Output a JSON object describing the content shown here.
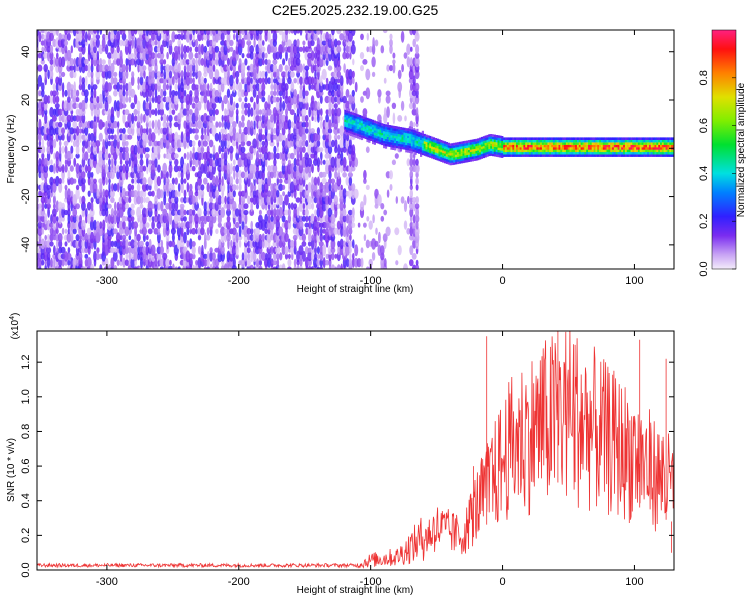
{
  "title": "C2E5.2025.232.19.00.G25",
  "chart_data": [
    {
      "type": "heatmap",
      "panel": "top",
      "xlabel": "Height of straight line (km)",
      "ylabel": "Frequency (Hz)",
      "xlim": [
        -353,
        130
      ],
      "ylim": [
        -50,
        49
      ],
      "xticks": [
        -300,
        -200,
        -100,
        0,
        100
      ],
      "yticks": [
        -40,
        -20,
        0,
        20,
        40
      ],
      "colorbar_label": "Normalized spectral amplitude",
      "colorbar_range": [
        0,
        1
      ],
      "colorbar_ticks": [
        "0.0",
        "0.2",
        "0.4",
        "0.6",
        "0.8"
      ],
      "noise_region_x": [
        -353,
        -112
      ],
      "scattered_region_x": [
        -112,
        -66
      ],
      "ridge_frequency_trend": [
        {
          "x": -120,
          "y": 12
        },
        {
          "x": -110,
          "y": 10
        },
        {
          "x": -100,
          "y": 8
        },
        {
          "x": -90,
          "y": 6
        },
        {
          "x": -80,
          "y": 5
        },
        {
          "x": -70,
          "y": 4
        },
        {
          "x": -60,
          "y": 2
        },
        {
          "x": -50,
          "y": 0
        },
        {
          "x": -40,
          "y": -2
        },
        {
          "x": -30,
          "y": -1
        },
        {
          "x": -20,
          "y": 0
        },
        {
          "x": -10,
          "y": 2
        },
        {
          "x": 0,
          "y": 1
        },
        {
          "x": 20,
          "y": 1
        },
        {
          "x": 40,
          "y": 1
        },
        {
          "x": 60,
          "y": 1
        },
        {
          "x": 80,
          "y": 1
        },
        {
          "x": 100,
          "y": 1
        },
        {
          "x": 130,
          "y": 1
        }
      ]
    },
    {
      "type": "line",
      "panel": "bottom",
      "xlabel": "Height of straight line (km)",
      "ylabel": "SNR (10 * v/v)",
      "y_multiplier": "(x10",
      "y_multiplier_exp": "4",
      "y_multiplier_close": ")",
      "xlim": [
        -353,
        130
      ],
      "ylim": [
        0,
        1.38
      ],
      "xticks": [
        -300,
        -200,
        -100,
        0,
        100
      ],
      "yticks": [
        "0.0",
        "0.2",
        "0.4",
        "0.6",
        "0.8",
        "1.0",
        "1.2"
      ],
      "color": "#ee3333",
      "envelope": [
        {
          "x": -353,
          "y": 0.03
        },
        {
          "x": -110,
          "y": 0.03
        },
        {
          "x": -100,
          "y": 0.06
        },
        {
          "x": -80,
          "y": 0.08
        },
        {
          "x": -60,
          "y": 0.2
        },
        {
          "x": -50,
          "y": 0.28
        },
        {
          "x": -40,
          "y": 0.25
        },
        {
          "x": -30,
          "y": 0.22
        },
        {
          "x": -20,
          "y": 0.42
        },
        {
          "x": -10,
          "y": 0.55
        },
        {
          "x": 0,
          "y": 0.72
        },
        {
          "x": 10,
          "y": 0.85
        },
        {
          "x": 20,
          "y": 0.9
        },
        {
          "x": 30,
          "y": 0.95
        },
        {
          "x": 40,
          "y": 1.0
        },
        {
          "x": 50,
          "y": 1.05
        },
        {
          "x": 60,
          "y": 0.98
        },
        {
          "x": 70,
          "y": 0.92
        },
        {
          "x": 80,
          "y": 0.85
        },
        {
          "x": 90,
          "y": 0.8
        },
        {
          "x": 100,
          "y": 0.75
        },
        {
          "x": 110,
          "y": 0.68
        },
        {
          "x": 120,
          "y": 0.6
        },
        {
          "x": 130,
          "y": 0.55
        }
      ],
      "spikes": [
        {
          "x": -12,
          "y": 1.35
        },
        {
          "x": 42,
          "y": 1.38
        },
        {
          "x": 55,
          "y": 1.3
        },
        {
          "x": 104,
          "y": 1.33
        },
        {
          "x": -22,
          "y": 0.6
        },
        {
          "x": 124,
          "y": 1.22
        },
        {
          "x": 128,
          "y": 0.1
        }
      ]
    }
  ]
}
